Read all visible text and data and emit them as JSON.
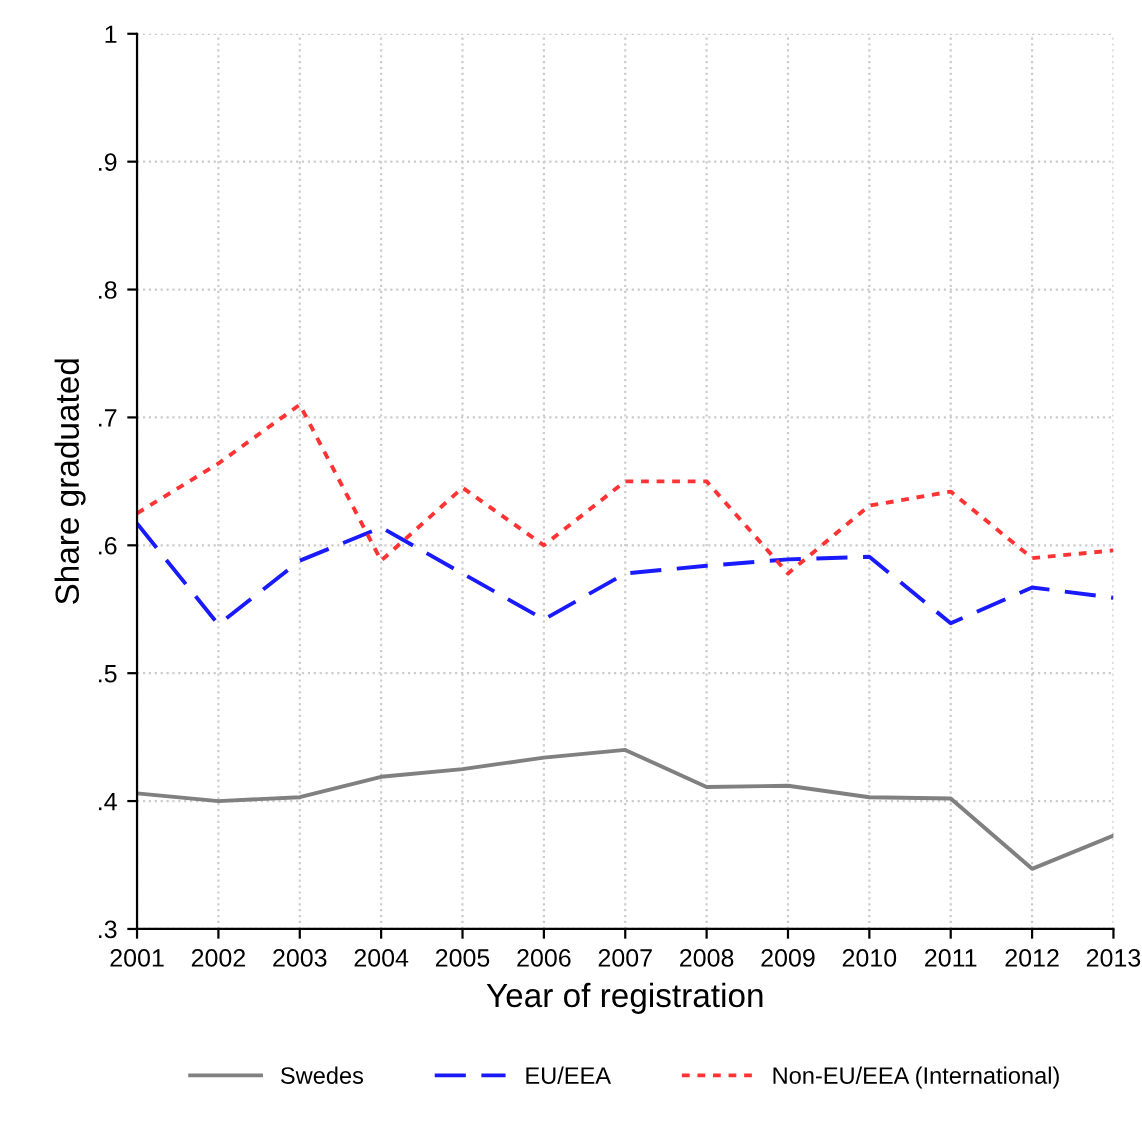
{
  "chart_data": {
    "type": "line",
    "xlabel": "Year of registration",
    "ylabel": "Share graduated",
    "x": [
      2001,
      2002,
      2003,
      2004,
      2005,
      2006,
      2007,
      2008,
      2009,
      2010,
      2011,
      2012,
      2013
    ],
    "series": [
      {
        "name": "Swedes",
        "color": "#808080",
        "line_style": "solid",
        "values": [
          0.406,
          0.4,
          0.403,
          0.419,
          0.425,
          0.434,
          0.44,
          0.411,
          0.412,
          0.403,
          0.402,
          0.347,
          0.373
        ]
      },
      {
        "name": "EU/EEA",
        "color": "#1a1aff",
        "line_style": "dashed",
        "values": [
          0.617,
          0.538,
          0.588,
          0.614,
          0.578,
          0.542,
          0.578,
          0.584,
          0.589,
          0.591,
          0.539,
          0.567,
          0.559
        ]
      },
      {
        "name": "Non-EU/EEA (International)",
        "color": "#ff3333",
        "line_style": "dotted",
        "values": [
          0.625,
          0.664,
          0.71,
          0.588,
          0.645,
          0.6,
          0.65,
          0.65,
          0.578,
          0.631,
          0.642,
          0.59,
          0.596
        ]
      }
    ],
    "xlim": [
      2001,
      2013
    ],
    "xticks": [
      2001,
      2002,
      2003,
      2004,
      2005,
      2006,
      2007,
      2008,
      2009,
      2010,
      2011,
      2012,
      2013
    ],
    "ylim": [
      0.3,
      1
    ],
    "yticks": [
      {
        "value": 0.3,
        "label": ".3"
      },
      {
        "value": 0.4,
        "label": ".4"
      },
      {
        "value": 0.5,
        "label": ".5"
      },
      {
        "value": 0.6,
        "label": ".6"
      },
      {
        "value": 0.7,
        "label": ".7"
      },
      {
        "value": 0.8,
        "label": ".8"
      },
      {
        "value": 0.9,
        "label": ".9"
      },
      {
        "value": 1,
        "label": "1"
      }
    ],
    "grid": true,
    "legend": "bottom",
    "marker": "none"
  }
}
